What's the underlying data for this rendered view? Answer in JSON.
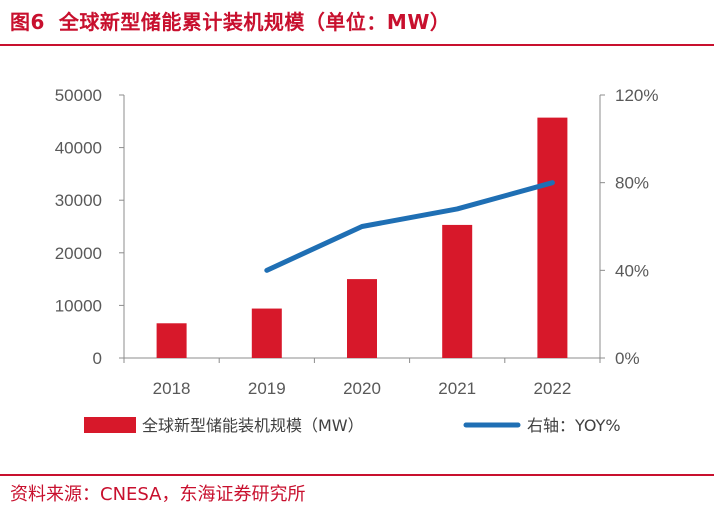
{
  "header": {
    "figure_label": "图6",
    "title": "全球新型储能累计装机规模（单位：MW）"
  },
  "footer": {
    "source": "资料来源：CNESA，东海证券研究所"
  },
  "chart_data": {
    "type": "bar",
    "title": "全球新型储能累计装机规模（单位：MW）",
    "categories": [
      "2018",
      "2019",
      "2020",
      "2021",
      "2022"
    ],
    "series": [
      {
        "name": "全球新型储能装机规模（MW）",
        "kind": "bar",
        "axis": "left",
        "color": "#d7182a",
        "values": [
          6600,
          9400,
          15000,
          25300,
          45700
        ]
      },
      {
        "name": "右轴：YOY%",
        "kind": "line",
        "axis": "right",
        "color": "#1f6fb4",
        "values": [
          null,
          40,
          60,
          68,
          80
        ]
      }
    ],
    "ylim_left": [
      0,
      50000
    ],
    "yticks_left": [
      "0",
      "10000",
      "20000",
      "30000",
      "40000",
      "50000"
    ],
    "ylim_right": [
      0,
      120
    ],
    "yticks_right": [
      "0%",
      "40%",
      "80%",
      "120%"
    ],
    "grid": false,
    "legend_position": "bottom"
  }
}
